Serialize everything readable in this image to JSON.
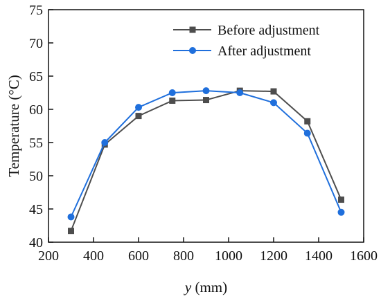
{
  "chart_data": {
    "type": "line",
    "xlabel_var": "y",
    "xlabel_unit": " (mm)",
    "ylabel": "Temperature (°C)",
    "xlim": [
      200,
      1600
    ],
    "ylim": [
      40,
      75
    ],
    "x_ticks": [
      200,
      400,
      600,
      800,
      1000,
      1200,
      1400,
      1600
    ],
    "y_ticks": [
      40,
      45,
      50,
      55,
      60,
      65,
      70,
      75
    ],
    "grid": false,
    "legend_position": "top-right",
    "series": [
      {
        "name": "Before adjustment",
        "color": "#4d4d4d",
        "marker": "square",
        "x": [
          300,
          450,
          600,
          750,
          900,
          1050,
          1200,
          1350,
          1500
        ],
        "y": [
          41.7,
          54.7,
          59.0,
          61.3,
          61.4,
          62.8,
          62.7,
          58.2,
          46.4
        ]
      },
      {
        "name": "After adjustment",
        "color": "#1f6fdc",
        "marker": "circle",
        "x": [
          300,
          450,
          600,
          750,
          900,
          1050,
          1200,
          1350,
          1500
        ],
        "y": [
          43.8,
          55.0,
          60.3,
          62.5,
          62.8,
          62.5,
          61.0,
          56.4,
          44.5
        ]
      }
    ]
  }
}
